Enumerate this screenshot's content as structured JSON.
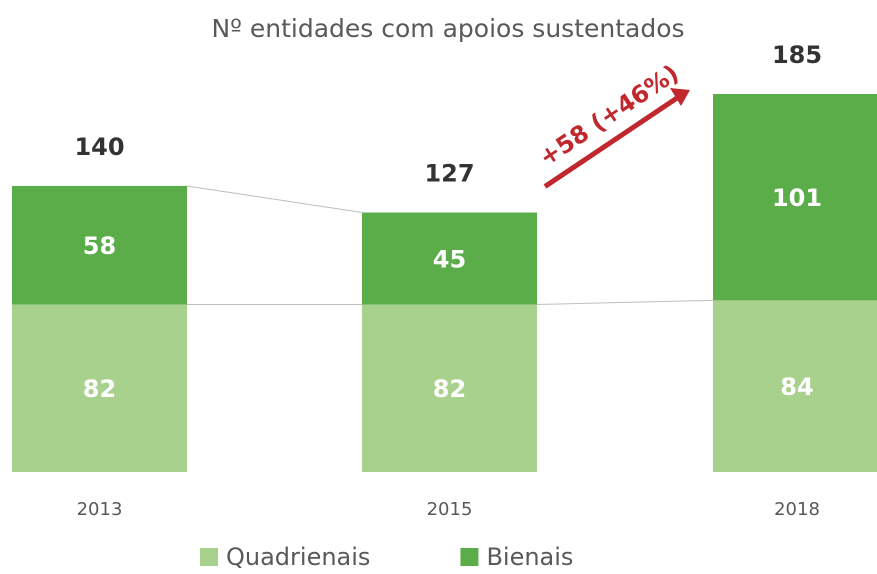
{
  "chart_data": {
    "type": "stacked_bar",
    "title": "Nº entidades com apoios sustentados",
    "categories": [
      "2013",
      "2015",
      "2018"
    ],
    "series": [
      {
        "name": "Quadrienais",
        "color": "#a9d18e",
        "values": [
          82,
          82,
          84
        ]
      },
      {
        "name": "Bienais",
        "color": "#5aad48",
        "values": [
          58,
          45,
          101
        ]
      }
    ],
    "totals": [
      140,
      127,
      185
    ],
    "annotation": "+58 (+46%)",
    "annotation_color": "#c0282d",
    "legend": "bottom"
  }
}
